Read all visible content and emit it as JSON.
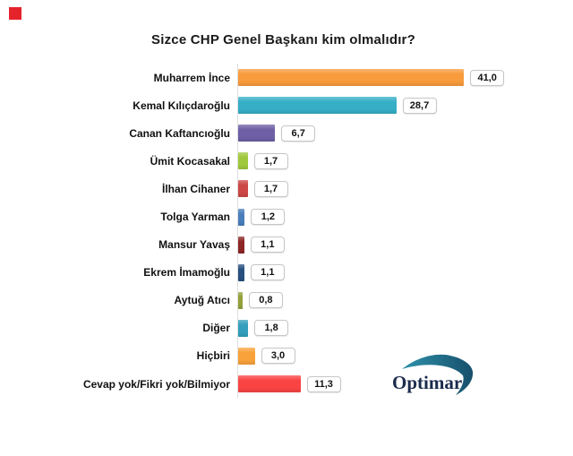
{
  "marker": {
    "color": "#e5232b"
  },
  "logo": {
    "text": "Optimar",
    "text_color": "#1b2b4d",
    "swoosh_color_start": "#2f93ac",
    "swoosh_color_end": "#174f6b"
  },
  "chart_data": {
    "type": "bar",
    "orientation": "horizontal",
    "title": "Sizce CHP Genel Başkanı kim olmalıdır?",
    "xlabel": "",
    "ylabel": "",
    "xlim": [
      0,
      45
    ],
    "grid": false,
    "legend": "none",
    "value_label_style": "boxed, decimal comma",
    "categories": [
      "Muharrem İnce",
      "Kemal Kılıçdaroğlu",
      "Canan Kaftancıoğlu",
      "Ümit Kocasakal",
      "İlhan Cihaner",
      "Tolga Yarman",
      "Mansur Yavaş",
      "Ekrem İmamoğlu",
      "Aytuğ Atıcı",
      "Diğer",
      "Hiçbiri",
      "Cevap yok/Fikri yok/Bilmiyor"
    ],
    "values": [
      41.0,
      28.7,
      6.7,
      1.7,
      1.7,
      1.2,
      1.1,
      1.1,
      0.8,
      1.8,
      3.0,
      11.3
    ],
    "value_labels": [
      "41,0",
      "28,7",
      "6,7",
      "1,7",
      "1,7",
      "1,2",
      "1,1",
      "1,1",
      "0,8",
      "1,8",
      "3,0",
      "11,3"
    ],
    "bar_colors": [
      "#f89b3c",
      "#35aec6",
      "#6e5fa6",
      "#a0c83c",
      "#cc4745",
      "#4a7ebb",
      "#8e2626",
      "#27507e",
      "#93a03a",
      "#339fbc",
      "#f9a23b",
      "#fa4343"
    ]
  }
}
